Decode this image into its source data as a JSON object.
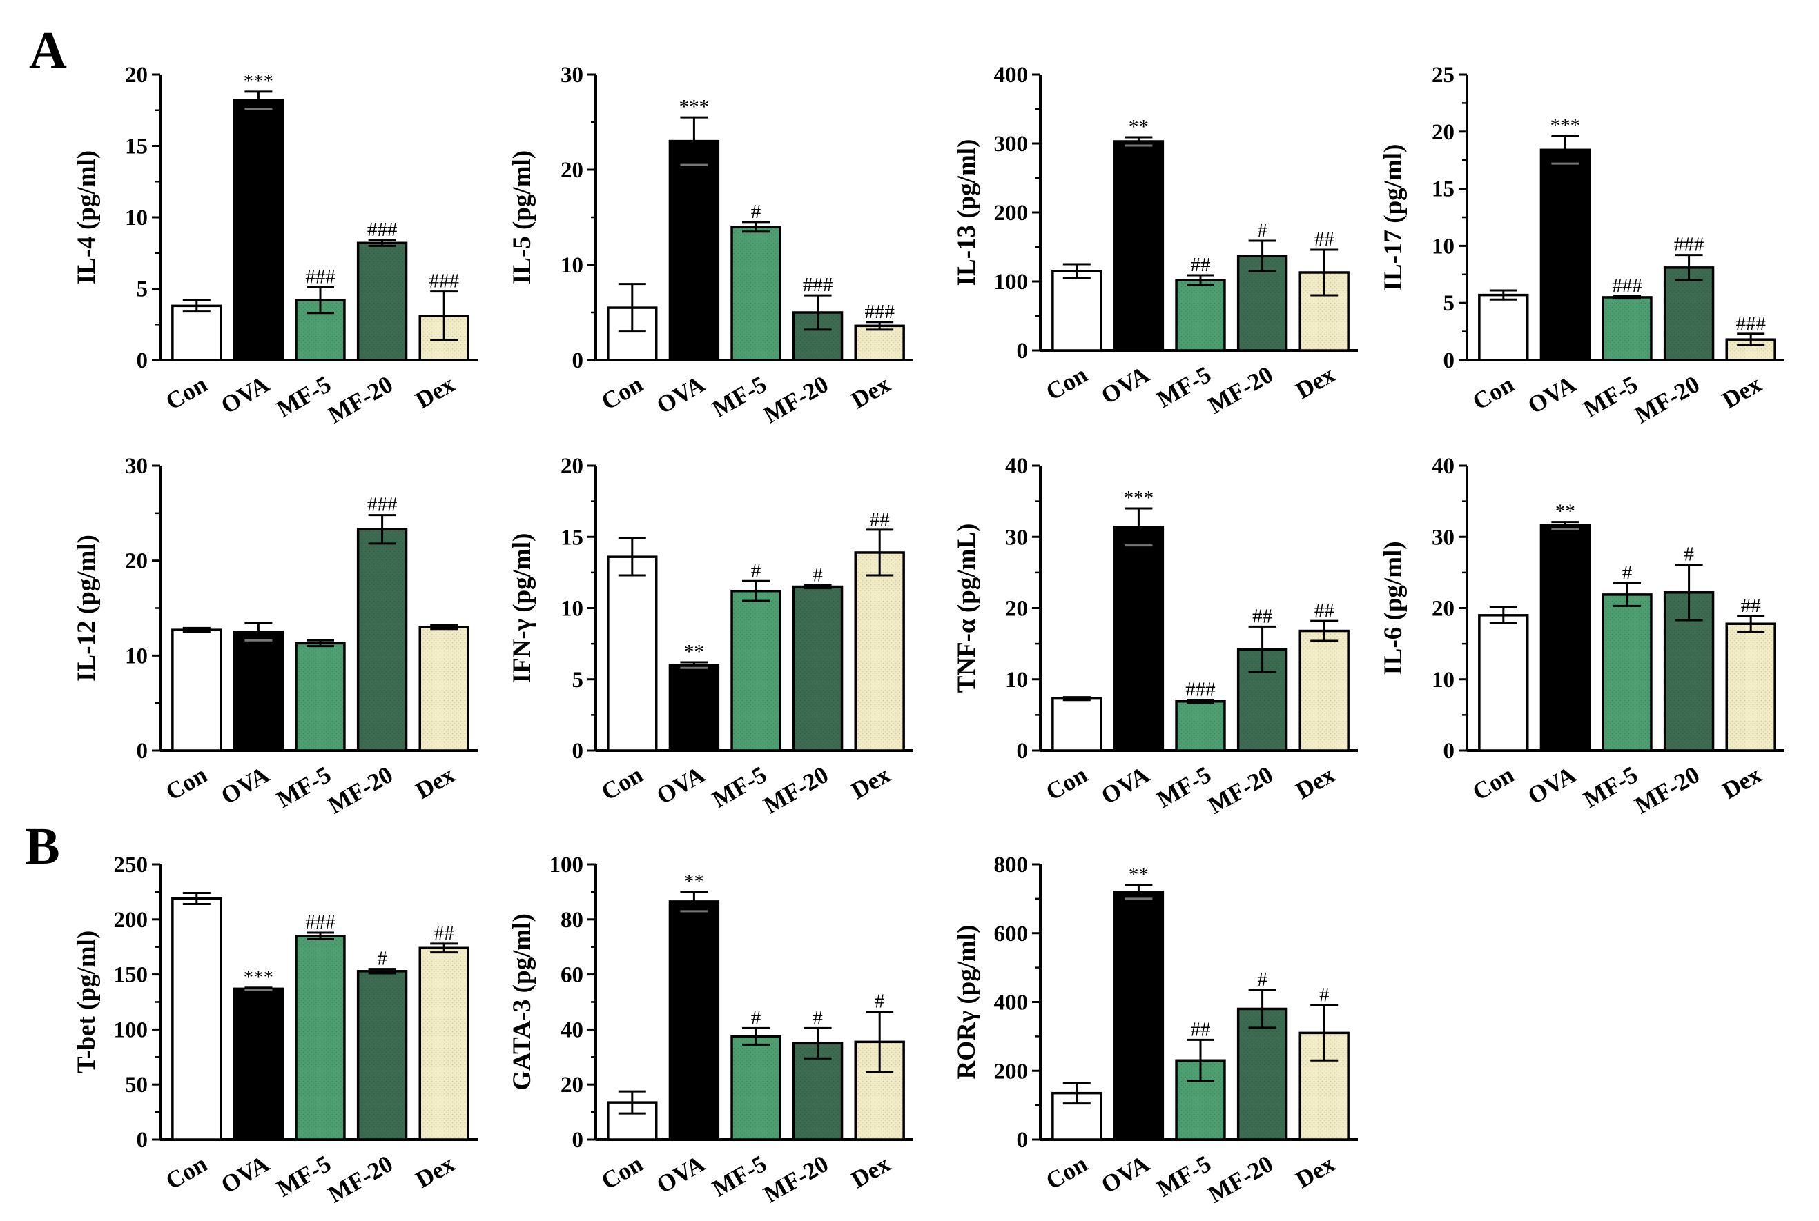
{
  "panels": {
    "A": "A",
    "B": "B"
  },
  "colors": {
    "Con": "#ffffff",
    "OVA": "#000000",
    "MF-5": "#4d9e70",
    "MF-20": "#3d6b51",
    "Dex": "#f2ecc6"
  },
  "chart_data": [
    {
      "type": "bar",
      "panel": "A",
      "ylabel": "IL-4 (pg/ml)",
      "ylim": [
        0,
        20
      ],
      "yticks": [
        0,
        5,
        10,
        15,
        20
      ],
      "categories": [
        "Con",
        "OVA",
        "MF-5",
        "MF-20",
        "Dex"
      ],
      "values": [
        3.8,
        18.2,
        4.2,
        8.2,
        3.1
      ],
      "errors": [
        0.4,
        0.6,
        0.9,
        0.2,
        1.7
      ],
      "annotations": [
        "",
        "***",
        "###",
        "###",
        "###"
      ]
    },
    {
      "type": "bar",
      "panel": "A",
      "ylabel": "IL-5 (pg/ml)",
      "ylim": [
        0,
        30
      ],
      "yticks": [
        0,
        10,
        20,
        30
      ],
      "categories": [
        "Con",
        "OVA",
        "MF-5",
        "MF-20",
        "Dex"
      ],
      "values": [
        5.5,
        23.0,
        14.0,
        5.0,
        3.6
      ],
      "errors": [
        2.5,
        2.5,
        0.5,
        1.8,
        0.4
      ],
      "annotations": [
        "",
        "***",
        "#",
        "###",
        "###"
      ]
    },
    {
      "type": "bar",
      "panel": "A",
      "ylabel": "IL-13 (pg/ml)",
      "ylim": [
        0,
        400
      ],
      "yticks": [
        0,
        100,
        200,
        300,
        400
      ],
      "categories": [
        "Con",
        "OVA",
        "MF-5",
        "MF-20",
        "Dex"
      ],
      "values": [
        115,
        303,
        102,
        137,
        113
      ],
      "errors": [
        10,
        6,
        7,
        22,
        33
      ],
      "annotations": [
        "",
        "**",
        "##",
        "#",
        "##"
      ]
    },
    {
      "type": "bar",
      "panel": "A",
      "ylabel": "IL-17 (pg/ml)",
      "ylim": [
        0,
        25
      ],
      "yticks": [
        0,
        5,
        10,
        15,
        20,
        25
      ],
      "categories": [
        "Con",
        "OVA",
        "MF-5",
        "MF-20",
        "Dex"
      ],
      "values": [
        5.7,
        18.4,
        5.5,
        8.1,
        1.8
      ],
      "errors": [
        0.4,
        1.2,
        0.1,
        1.1,
        0.5
      ],
      "annotations": [
        "",
        "***",
        "###",
        "###",
        "###"
      ]
    },
    {
      "type": "bar",
      "panel": "A",
      "ylabel": "IL-12 (pg/ml)",
      "ylim": [
        0,
        30
      ],
      "yticks": [
        0,
        10,
        20,
        30
      ],
      "categories": [
        "Con",
        "OVA",
        "MF-5",
        "MF-20",
        "Dex"
      ],
      "values": [
        12.7,
        12.5,
        11.3,
        23.3,
        13.0
      ],
      "errors": [
        0.2,
        0.9,
        0.3,
        1.5,
        0.2
      ],
      "annotations": [
        "",
        "",
        "",
        "###",
        ""
      ]
    },
    {
      "type": "bar",
      "panel": "A",
      "ylabel": "IFN-γ (pg/ml)",
      "ylim": [
        0,
        20
      ],
      "yticks": [
        0,
        5,
        10,
        15,
        20
      ],
      "categories": [
        "Con",
        "OVA",
        "MF-5",
        "MF-20",
        "Dex"
      ],
      "values": [
        13.6,
        6.0,
        11.2,
        11.5,
        13.9
      ],
      "errors": [
        1.3,
        0.2,
        0.7,
        0.1,
        1.6
      ],
      "annotations": [
        "",
        "**",
        "#",
        "#",
        "##"
      ]
    },
    {
      "type": "bar",
      "panel": "A",
      "ylabel": "TNF-α (pg/mL)",
      "ylim": [
        0,
        40
      ],
      "yticks": [
        0,
        10,
        20,
        30,
        40
      ],
      "categories": [
        "Con",
        "OVA",
        "MF-5",
        "MF-20",
        "Dex"
      ],
      "values": [
        7.3,
        31.4,
        6.9,
        14.2,
        16.8
      ],
      "errors": [
        0.2,
        2.6,
        0.2,
        3.2,
        1.4
      ],
      "annotations": [
        "",
        "***",
        "###",
        "##",
        "##"
      ]
    },
    {
      "type": "bar",
      "panel": "A",
      "ylabel": "IL-6 (pg/ml)",
      "ylim": [
        0,
        40
      ],
      "yticks": [
        0,
        10,
        20,
        30,
        40
      ],
      "categories": [
        "Con",
        "OVA",
        "MF-5",
        "MF-20",
        "Dex"
      ],
      "values": [
        19.0,
        31.6,
        21.9,
        22.2,
        17.8
      ],
      "errors": [
        1.1,
        0.5,
        1.6,
        3.9,
        1.1
      ],
      "annotations": [
        "",
        "**",
        "#",
        "#",
        "##"
      ]
    },
    {
      "type": "bar",
      "panel": "B",
      "ylabel": "T-bet (pg/ml)",
      "ylim": [
        0,
        250
      ],
      "yticks": [
        0,
        50,
        100,
        150,
        200,
        250
      ],
      "categories": [
        "Con",
        "OVA",
        "MF-5",
        "MF-20",
        "Dex"
      ],
      "values": [
        219,
        137,
        185,
        153,
        174
      ],
      "errors": [
        5,
        1,
        3,
        2,
        4
      ],
      "annotations": [
        "",
        "***",
        "###",
        "#",
        "##"
      ]
    },
    {
      "type": "bar",
      "panel": "B",
      "ylabel": "GATA-3 (pg/ml)",
      "ylim": [
        0,
        100
      ],
      "yticks": [
        0,
        20,
        40,
        60,
        80,
        100
      ],
      "categories": [
        "Con",
        "OVA",
        "MF-5",
        "MF-20",
        "Dex"
      ],
      "values": [
        13.5,
        86.5,
        37.5,
        35.0,
        35.5
      ],
      "errors": [
        4.0,
        3.5,
        3.0,
        5.5,
        11.0
      ],
      "annotations": [
        "",
        "**",
        "#",
        "#",
        "#"
      ]
    },
    {
      "type": "bar",
      "panel": "B",
      "ylabel": "RORγ (pg/ml)",
      "ylim": [
        0,
        800
      ],
      "yticks": [
        0,
        200,
        400,
        600,
        800
      ],
      "categories": [
        "Con",
        "OVA",
        "MF-5",
        "MF-20",
        "Dex"
      ],
      "values": [
        135,
        720,
        230,
        380,
        310
      ],
      "errors": [
        30,
        20,
        60,
        55,
        80
      ],
      "annotations": [
        "",
        "**",
        "##",
        "#",
        "#"
      ]
    }
  ]
}
